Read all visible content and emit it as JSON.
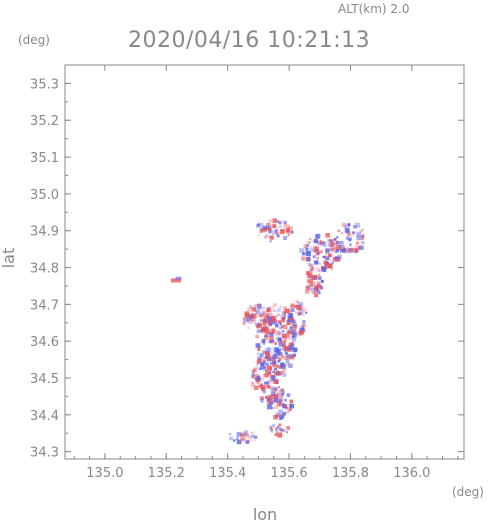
{
  "header": {
    "alt_label": "ALT(km) 2.0",
    "title": "2020/04/16 10:21:13",
    "y_unit": "(deg)",
    "x_unit": "(deg)"
  },
  "chart_data": {
    "type": "heatmap",
    "title": "2020/04/16 10:21:13",
    "xlabel": "lon",
    "ylabel": "lat",
    "xlim": [
      134.87,
      136.17
    ],
    "ylim": [
      34.28,
      35.35
    ],
    "xticks": [
      135.0,
      135.2,
      135.4,
      135.6,
      135.8,
      136.0
    ],
    "xtick_labels": [
      "135.0",
      "135.2",
      "135.4",
      "135.6",
      "135.8",
      "136.0"
    ],
    "yticks": [
      34.3,
      34.4,
      34.5,
      34.6,
      34.7,
      34.8,
      34.9,
      35.0,
      35.1,
      35.2,
      35.3
    ],
    "ytick_labels": [
      "34.3",
      "34.4",
      "34.5",
      "34.6",
      "34.7",
      "34.8",
      "34.9",
      "35.0",
      "35.1",
      "35.2",
      "35.3"
    ],
    "grid": false,
    "colors": {
      "positive": "#e9545a",
      "negative": "#5a63e8",
      "frame": "#888888",
      "text": "#888888"
    },
    "clusters": [
      {
        "lon": 135.56,
        "lat": 34.6,
        "rlon": 0.065,
        "rlat": 0.1
      },
      {
        "lon": 135.53,
        "lat": 34.5,
        "rlon": 0.05,
        "rlat": 0.07
      },
      {
        "lon": 135.57,
        "lat": 34.43,
        "rlon": 0.04,
        "rlat": 0.04
      },
      {
        "lon": 135.5,
        "lat": 34.66,
        "rlon": 0.05,
        "rlat": 0.04
      },
      {
        "lon": 135.62,
        "lat": 34.66,
        "rlon": 0.04,
        "rlat": 0.05
      },
      {
        "lon": 135.71,
        "lat": 34.84,
        "rlon": 0.07,
        "rlat": 0.05
      },
      {
        "lon": 135.8,
        "lat": 34.88,
        "rlon": 0.05,
        "rlat": 0.04
      },
      {
        "lon": 135.68,
        "lat": 34.76,
        "rlon": 0.03,
        "rlat": 0.04
      },
      {
        "lon": 135.55,
        "lat": 34.9,
        "rlon": 0.06,
        "rlat": 0.03
      },
      {
        "lon": 135.45,
        "lat": 34.34,
        "rlon": 0.05,
        "rlat": 0.015
      },
      {
        "lon": 135.57,
        "lat": 34.36,
        "rlon": 0.04,
        "rlat": 0.015
      }
    ]
  }
}
